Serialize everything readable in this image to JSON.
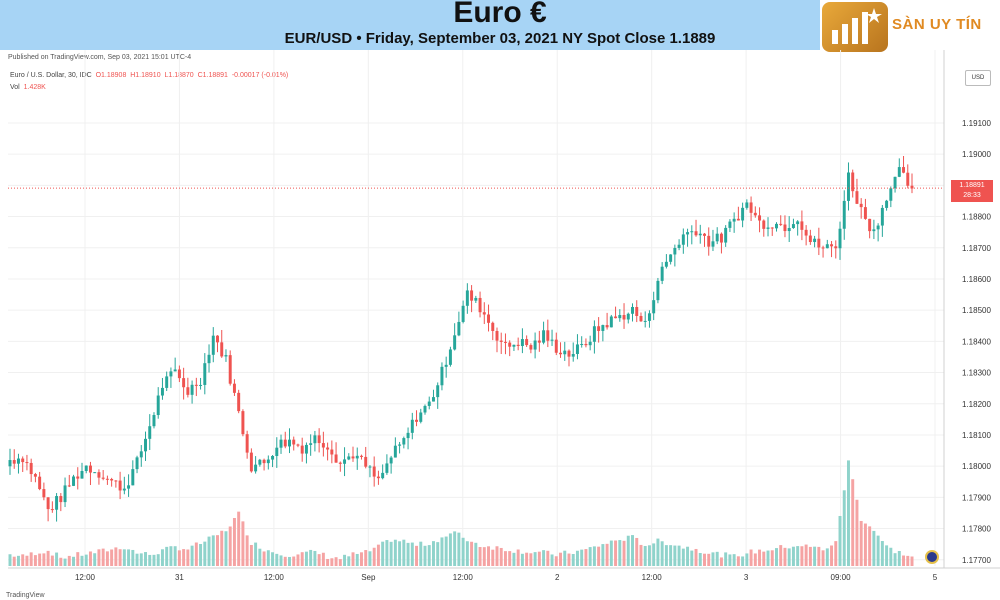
{
  "header": {
    "title": "Euro €",
    "subtitle": "EUR/USD • Friday, September 03, 2021 NY Spot Close 1.1889"
  },
  "logo": {
    "text": "SÀN UY TÍN"
  },
  "published": "Published on TradingView.com, Sep 03, 2021 15:01 UTC-4",
  "ohlc": {
    "symbol": "Euro / U.S. Dollar, 30, IDC",
    "o": "O1.18908",
    "h": "H1.18910",
    "l": "L1.18870",
    "c": "C1.18891",
    "change": "-0.00017 (-0.01%)"
  },
  "vol": {
    "label": "Vol",
    "value": "1.428K"
  },
  "last_price": {
    "price": "1.18891",
    "countdown": "28:33"
  },
  "currency": "USD",
  "watermark": "TradingView",
  "colors": {
    "up": "#26a69a",
    "down": "#ef5350",
    "vol_up": "#8fd3cb",
    "vol_down": "#f5a3a3",
    "priceline": "#ef5350"
  },
  "chart_data": {
    "type": "candlestick",
    "title": "Euro €",
    "subtitle": "EUR/USD • Friday, September 03, 2021 NY Spot Close 1.1889",
    "ylabel": "USD",
    "ylim": [
      1.1768,
      1.1918
    ],
    "y_ticks": [
      "1.19100",
      "1.19000",
      "1.18900",
      "1.18800",
      "1.18700",
      "1.18600",
      "1.18500",
      "1.18400",
      "1.18300",
      "1.18200",
      "1.18100",
      "1.18000",
      "1.17900",
      "1.17800",
      "1.17700"
    ],
    "x_ticks": [
      "12:00",
      "31",
      "12:00",
      "Sep",
      "12:00",
      "2",
      "12:00",
      "3",
      "09:00",
      "5"
    ],
    "grid": true,
    "last_close": 1.18891,
    "close_path": [
      1.1802,
      1.1803,
      1.1796,
      1.1786,
      1.179,
      1.1796,
      1.18,
      1.1798,
      1.1795,
      1.1793,
      1.1801,
      1.1813,
      1.1826,
      1.183,
      1.1824,
      1.1828,
      1.1842,
      1.1834,
      1.1817,
      1.18,
      1.1801,
      1.1807,
      1.1808,
      1.1806,
      1.1809,
      1.1807,
      1.1801,
      1.1804,
      1.18,
      1.1795,
      1.1803,
      1.1808,
      1.1816,
      1.182,
      1.183,
      1.1843,
      1.1855,
      1.1851,
      1.1844,
      1.1838,
      1.184,
      1.1838,
      1.1842,
      1.1838,
      1.1836,
      1.1838,
      1.1843,
      1.1846,
      1.1848,
      1.185,
      1.1845,
      1.186,
      1.1868,
      1.1874,
      1.1876,
      1.1872,
      1.1873,
      1.1879,
      1.1884,
      1.1878,
      1.1878,
      1.1877,
      1.188,
      1.1872,
      1.187,
      1.187,
      1.1893,
      1.1882,
      1.1875,
      1.1887,
      1.1894,
      1.1889
    ],
    "volume_path": [
      12,
      10,
      14,
      16,
      9,
      11,
      13,
      15,
      18,
      20,
      14,
      12,
      16,
      20,
      18,
      24,
      30,
      38,
      55,
      25,
      18,
      14,
      12,
      13,
      15,
      10,
      8,
      12,
      14,
      20,
      28,
      26,
      22,
      24,
      30,
      35,
      28,
      22,
      20,
      18,
      16,
      15,
      14,
      12,
      14,
      16,
      20,
      24,
      28,
      30,
      22,
      26,
      24,
      20,
      18,
      14,
      12,
      10,
      14,
      16,
      18,
      20,
      22,
      20,
      18,
      24,
      110,
      50,
      38,
      20,
      14,
      10
    ]
  }
}
